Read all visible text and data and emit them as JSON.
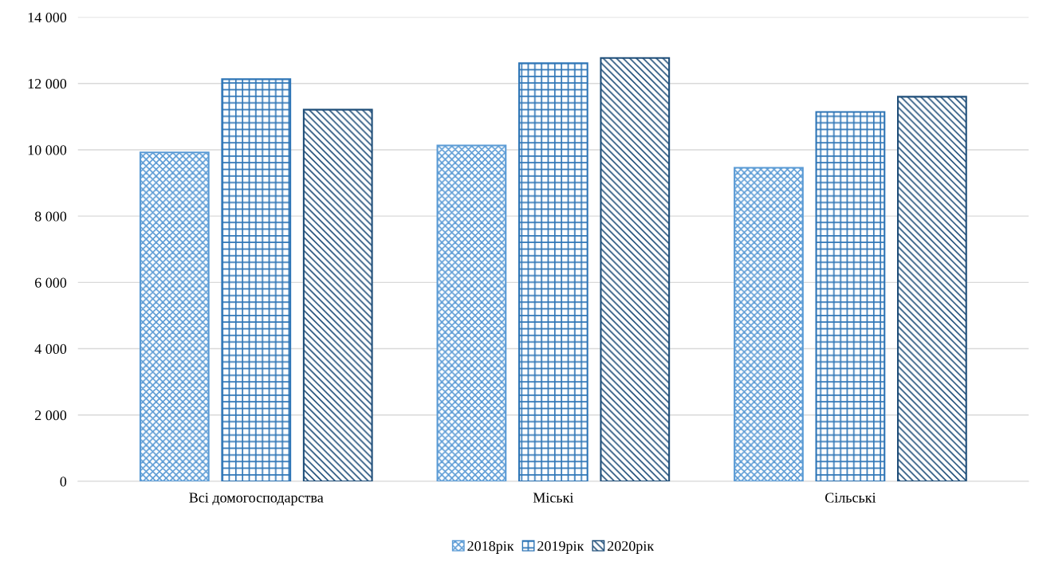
{
  "chart_data": {
    "type": "bar",
    "categories": [
      "Всі домогосподарства",
      "Міські",
      "Сільські"
    ],
    "series": [
      {
        "name": "2018рік",
        "color": "#5b9bd5",
        "values": [
          9920,
          10130,
          9460
        ]
      },
      {
        "name": "2019рік",
        "color": "#2e75b6",
        "values": [
          12130,
          12610,
          11140
        ]
      },
      {
        "name": "2020рік",
        "color": "#1f4e79",
        "values": [
          11210,
          12770,
          11600
        ]
      }
    ],
    "ylim": [
      0,
      14000
    ],
    "yticks": [
      0,
      {
        "value": 2000,
        "label": "2 000"
      },
      {
        "value": 4000,
        "label": "4 000"
      },
      {
        "value": 6000,
        "label": "6 000"
      },
      {
        "value": 8000,
        "label": "8 000"
      },
      {
        "value": 10000,
        "label": "10 000"
      },
      {
        "value": 12000,
        "label": "12 000"
      },
      {
        "value": 14000,
        "label": "14 000"
      }
    ],
    "grid": "y",
    "legend": "bottom"
  }
}
